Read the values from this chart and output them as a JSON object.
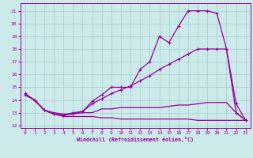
{
  "bg_color": "#cceaea",
  "grid_color": "#aacccc",
  "line_color": "#990099",
  "xlabel": "Windchill (Refroidissement éolien,°C)",
  "xlim": [
    -0.5,
    23.5
  ],
  "ylim": [
    11.8,
    21.6
  ],
  "yticks": [
    12,
    13,
    14,
    15,
    16,
    17,
    18,
    19,
    20,
    21
  ],
  "xticks": [
    0,
    1,
    2,
    3,
    4,
    5,
    6,
    7,
    8,
    9,
    10,
    11,
    12,
    13,
    14,
    15,
    16,
    17,
    18,
    19,
    20,
    21,
    22,
    23
  ],
  "line1_x": [
    0,
    1,
    2,
    3,
    4,
    5,
    6,
    7,
    8,
    9,
    10,
    11,
    12,
    13,
    14,
    15,
    16,
    17,
    18,
    19,
    20,
    21,
    22,
    23
  ],
  "line1_y": [
    14.5,
    14.0,
    13.2,
    12.9,
    12.8,
    12.9,
    13.1,
    13.9,
    14.4,
    15.0,
    15.0,
    15.0,
    16.4,
    17.0,
    19.0,
    18.5,
    19.8,
    21.0,
    21.0,
    21.0,
    20.8,
    18.0,
    13.0,
    12.4
  ],
  "line2_x": [
    0,
    1,
    2,
    3,
    4,
    5,
    6,
    7,
    8,
    9,
    10,
    11,
    12,
    13,
    14,
    15,
    16,
    17,
    18,
    19,
    20,
    21,
    22,
    23
  ],
  "line2_y": [
    14.4,
    14.0,
    13.2,
    12.9,
    12.8,
    13.0,
    13.1,
    13.7,
    14.1,
    14.5,
    14.8,
    15.1,
    15.5,
    15.9,
    16.4,
    16.8,
    17.2,
    17.6,
    18.0,
    18.0,
    18.0,
    18.0,
    13.7,
    12.4
  ],
  "line3_x": [
    0,
    1,
    2,
    3,
    4,
    5,
    6,
    7,
    8,
    9,
    10,
    11,
    12,
    13,
    14,
    15,
    16,
    17,
    18,
    19,
    20,
    21,
    22,
    23
  ],
  "line3_y": [
    14.4,
    14.0,
    13.2,
    13.0,
    12.9,
    12.9,
    13.0,
    13.0,
    13.3,
    13.3,
    13.4,
    13.4,
    13.4,
    13.4,
    13.4,
    13.5,
    13.6,
    13.6,
    13.7,
    13.8,
    13.8,
    13.8,
    13.0,
    12.4
  ],
  "line4_x": [
    0,
    1,
    2,
    3,
    4,
    5,
    6,
    7,
    8,
    9,
    10,
    11,
    12,
    13,
    14,
    15,
    16,
    17,
    18,
    19,
    20,
    21,
    22,
    23
  ],
  "line4_y": [
    14.4,
    14.0,
    13.2,
    12.9,
    12.7,
    12.7,
    12.7,
    12.7,
    12.6,
    12.6,
    12.5,
    12.5,
    12.5,
    12.5,
    12.5,
    12.5,
    12.5,
    12.5,
    12.4,
    12.4,
    12.4,
    12.4,
    12.4,
    12.4
  ]
}
